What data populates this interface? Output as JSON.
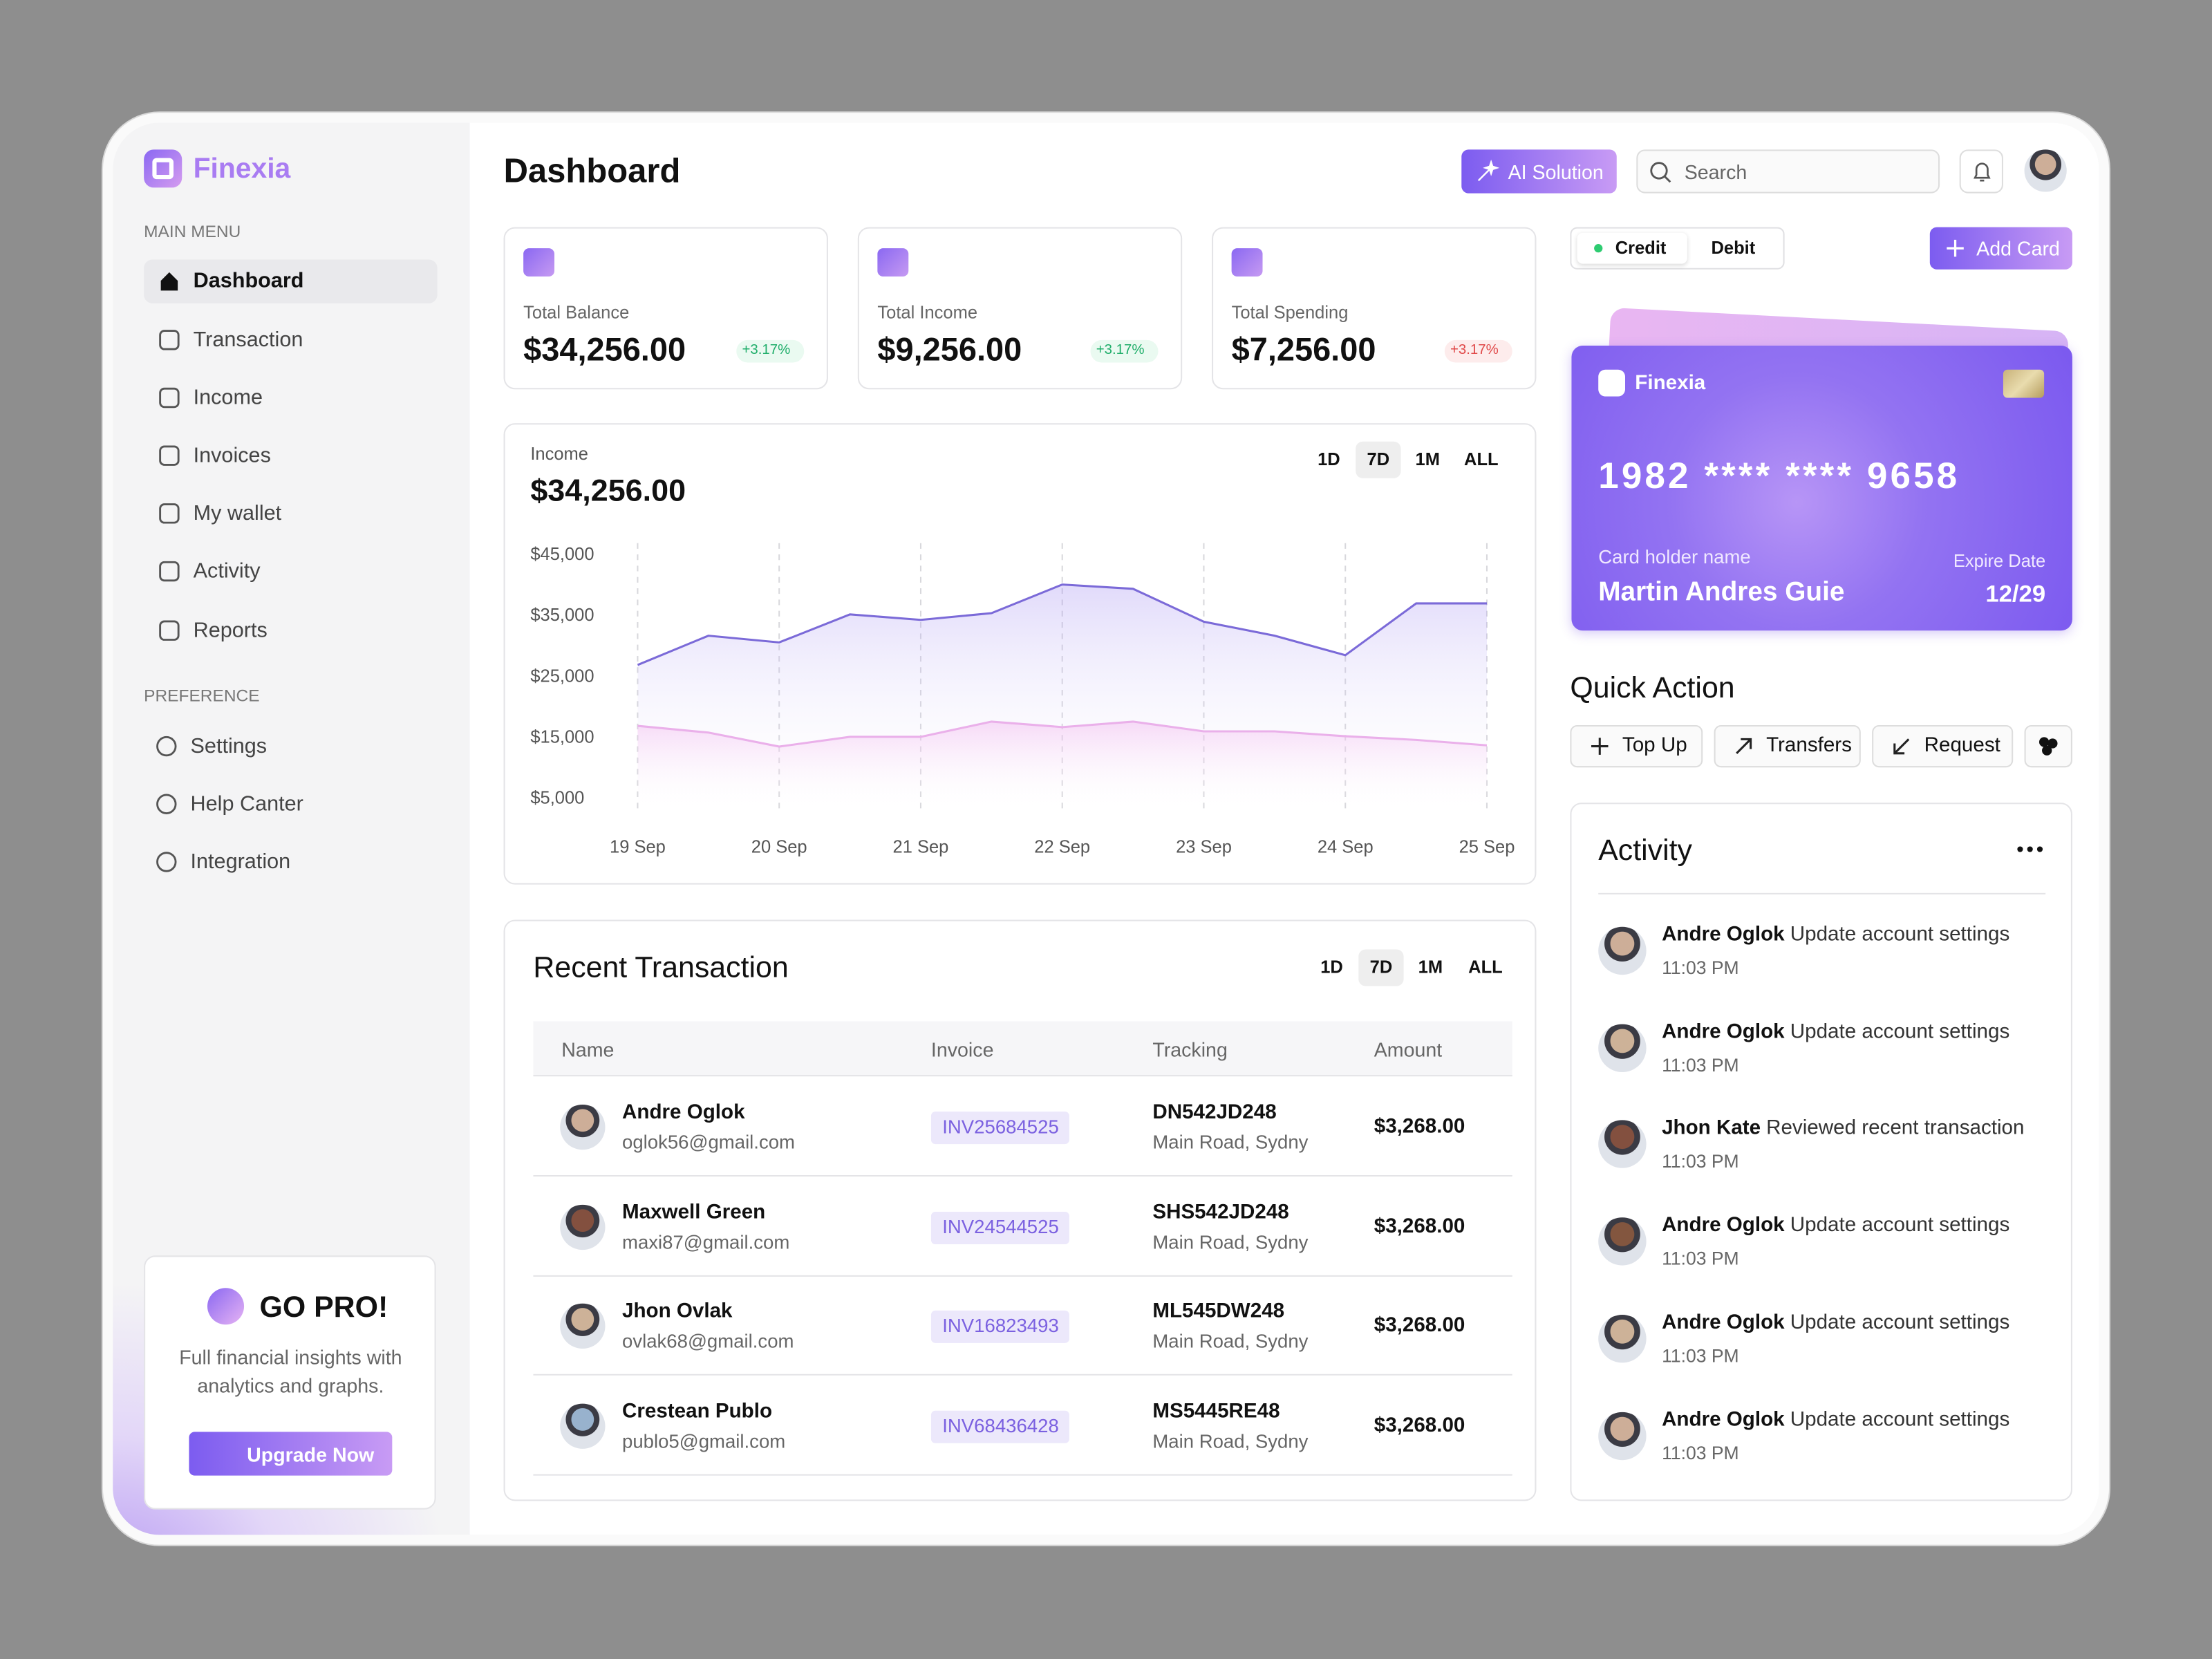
{
  "brand": "Finexia",
  "sidebar": {
    "main_menu_label": "MAIN MENU",
    "main_menu": [
      "Dashboard",
      "Transaction",
      "Income",
      "Invoices",
      "My wallet",
      "Activity",
      "Reports"
    ],
    "preference_label": "PREFERENCE",
    "preference": [
      "Settings",
      "Help Canter",
      "Integration"
    ]
  },
  "promo": {
    "title": "GO PRO!",
    "text": "Full financial insights with analytics and graphs.",
    "button": "Upgrade Now"
  },
  "header": {
    "title": "Dashboard",
    "ai_button": "AI Solution",
    "search_placeholder": "Search"
  },
  "stats": [
    {
      "label": "Total Balance",
      "value": "$34,256.00",
      "change": "+3.17%",
      "trend": "up"
    },
    {
      "label": "Total Income",
      "value": "$9,256.00",
      "change": "+3.17%",
      "trend": "up"
    },
    {
      "label": "Total Spending",
      "value": "$7,256.00",
      "change": "+3.17%",
      "trend": "down"
    }
  ],
  "income_ranges": [
    "1D",
    "7D",
    "1M",
    "ALL"
  ],
  "chart_data": {
    "type": "area",
    "title": "Income",
    "subtitle": "$34,256.00",
    "categories": [
      "19 Sep",
      null,
      "20 Sep",
      null,
      "21 Sep",
      null,
      "22 Sep",
      null,
      "23 Sep",
      null,
      "24 Sep",
      null,
      "25 Sep"
    ],
    "series": [
      {
        "color": "#7b6ad8",
        "values": [
          27000,
          31800,
          30700,
          35300,
          34400,
          35500,
          40200,
          39500,
          34100,
          31800,
          28600,
          37100,
          37100
        ]
      },
      {
        "color": "#eab0ea",
        "values": [
          17000,
          15900,
          13600,
          15200,
          15200,
          17700,
          16800,
          17700,
          16100,
          16100,
          15300,
          14700,
          13800
        ]
      }
    ],
    "ylim": [
      3000,
      47000
    ],
    "yticks": [
      {
        "value": 5000,
        "label": "$5,000"
      },
      {
        "value": 15000,
        "label": "$15,000"
      },
      {
        "value": 25000,
        "label": "$25,000"
      },
      {
        "value": 35000,
        "label": "$35,000"
      },
      {
        "value": 45000,
        "label": "$45,000"
      }
    ],
    "grid": true
  },
  "transactions": {
    "title": "Recent Transaction",
    "ranges": [
      "1D",
      "7D",
      "1M",
      "ALL"
    ],
    "columns": [
      "Name",
      "Invoice",
      "Tracking",
      "Amount"
    ],
    "rows": [
      [
        "Andre Oglok",
        "oglok56@gmail.com",
        "INV25684525",
        "DN542JD248",
        "Main Road, Sydny",
        "$3,268.00"
      ],
      [
        "Maxwell Green",
        "maxi87@gmail.com",
        "INV24544525",
        "SHS542JD248",
        "Main Road, Sydny",
        "$3,268.00"
      ],
      [
        "Jhon Ovlak",
        "ovlak68@gmail.com",
        "INV16823493",
        "ML545DW248",
        "Main Road, Sydny",
        "$3,268.00"
      ],
      [
        "Crestean Publo",
        "publo5@gmail.com",
        "INV68436428",
        "MS5445RE48",
        "Main Road, Sydny",
        "$3,268.00"
      ]
    ]
  },
  "card": {
    "tabs": [
      "Credit",
      "Debit"
    ],
    "add_card": "Add Card",
    "brand": "Finexia",
    "number": "1982 **** **** 9658",
    "holder_label": "Card holder name",
    "holder": "Martin Andres Guie",
    "expire_label": "Expire Date",
    "expire": "12/29"
  },
  "quick_action": {
    "title": "Quick Action",
    "actions": [
      "Top Up",
      "Transfers",
      "Request"
    ]
  },
  "activity": {
    "title": "Activity",
    "items": [
      {
        "name": "Andre Oglok",
        "action": "Update account settings",
        "time": "11:03 PM"
      },
      {
        "name": "Andre Oglok",
        "action": "Update account settings",
        "time": "11:03 PM"
      },
      {
        "name": "Jhon Kate",
        "action": "Reviewed recent transaction",
        "time": "11:03 PM"
      },
      {
        "name": "Andre Oglok",
        "action": "Update account settings",
        "time": "11:03 PM"
      },
      {
        "name": "Andre Oglok",
        "action": "Update account settings",
        "time": "11:03 PM"
      },
      {
        "name": "Andre Oglok",
        "action": "Update account settings",
        "time": "11:03 PM"
      }
    ]
  }
}
